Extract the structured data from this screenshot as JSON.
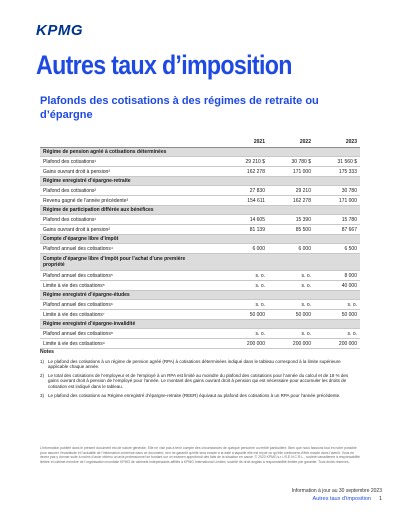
{
  "logo": "KPMG",
  "title": "Autres taux d’imposition",
  "subtitle": "Plafonds des cotisations à des régimes de retraite ou d’épargne",
  "table": {
    "years": [
      "2021",
      "2022",
      "2023"
    ],
    "sections": [
      {
        "heading": "Régime de pension agréé à cotisations déterminées",
        "rows": [
          {
            "label": "Plafond des cotisations¹",
            "values": [
              "29 210 $",
              "30 780 $",
              "31 560 $"
            ]
          },
          {
            "label": "Gains ouvrant droit à pension²",
            "values": [
              "162 278",
              "171 000",
              "175 333"
            ]
          }
        ]
      },
      {
        "heading": "Régime enregistré d’épargne-retraite",
        "rows": [
          {
            "label": "Plafond des cotisations²",
            "values": [
              "27 830",
              "29 210",
              "30 780"
            ]
          },
          {
            "label": "Revenu gagné de l’année précédente³",
            "values": [
              "154 611",
              "162 278",
              "171 000"
            ]
          }
        ]
      },
      {
        "heading": "Régime de participation différée aux bénéfices",
        "rows": [
          {
            "label": "Plafond des cotisations¹",
            "values": [
              "14 605",
              "15 390",
              "15 780"
            ]
          },
          {
            "label": "Gains ouvrant droit à pension²",
            "values": [
              "81 139",
              "85 500",
              "87 667"
            ]
          }
        ]
      },
      {
        "heading": "Compte d’épargne libre d’impôt",
        "rows": [
          {
            "label": "Plafond annuel des cotisations⁴",
            "values": [
              "6 000",
              "6 000",
              "6 500"
            ]
          }
        ]
      },
      {
        "heading": "Compte d’épargne libre d’impôt pour l’achat d’une première propriété",
        "two_line": true,
        "rows": [
          {
            "label": "Plafond annuel des cotisations⁵",
            "values": [
              "s. o.",
              "s. o.",
              "8 000"
            ]
          },
          {
            "label": "Limite à vie des cotisations⁵",
            "values": [
              "s. o.",
              "s. o.",
              "40 000"
            ]
          }
        ]
      },
      {
        "heading": "Régime enregistré d’épargne-études",
        "rows": [
          {
            "label": "Plafond annuel des cotisations⁶",
            "values": [
              "s. o.",
              "s. o.",
              "s. o."
            ]
          },
          {
            "label": "Limite à vie des cotisations⁷",
            "values": [
              "50 000",
              "50 000",
              "50 000"
            ]
          }
        ]
      },
      {
        "heading": "Régime enregistré d’épargne-invalidité",
        "rows": [
          {
            "label": "Plafond annuel des cotisations⁸",
            "values": [
              "s. o.",
              "s. o.",
              "s. o."
            ]
          },
          {
            "label": "Limite à vie des cotisations⁹",
            "values": [
              "200 000",
              "200 000",
              "200 000"
            ]
          }
        ]
      }
    ]
  },
  "notes": {
    "title": "Notes",
    "items": [
      {
        "n": "1)",
        "text": "Le plafond des cotisations à un régime de pension agréé (RPA) à cotisations déterminées indiqué dans le tableau correspond à la limite supérieure applicable chaque année."
      },
      {
        "n": "2)",
        "text": "Le total des cotisations de l’employeur et de l’employé à un RPA est limité au moindre du plafond des cotisations pour l’année du calcul et de 18 % des gains ouvrant droit à pension de l’employé pour l’année. Le montant des gains ouvrant droit à pension qui est nécessaire pour accumuler les droits de cotisation est indiqué dans le tableau."
      },
      {
        "n": "3)",
        "text": "Le plafond des cotisations au Régime enregistré d’épargne-retraite (REER) équivaut au plafond des cotisations à un RPA pour l’année précédente."
      }
    ]
  },
  "disclaimer": "L’information publiée dans le présent document est de nature générale. Elle ne vise pas à tenir compte des circonstances de quelque personne ou entité particulière. Bien que nous fassions tout en notre possible pour assurer l’exactitude et l’actualité de l’information contenue dans ce document, rien ne garantit qu’elle sera exacte à la date à laquelle elle est reçue ou qu’elle continuera d’être exacte dans l’avenir. Vous ne devez pas y donner suite à moins d’avoir obtenu un avis professionnel se fondant sur un examen approfondi des faits de la situation en cause. © 2023 KPMG s.r.l./S.E.N.C.R.L., société canadienne à responsabilité limitée et cabinet membre de l’organisation mondiale KPMG de cabinets indépendants affiliés à KPMG International Limited, société de droit anglais à responsabilité limitée par garantie. Tous droits réservés.",
  "footer": {
    "date": "Information à jour au 30 septembre 2023",
    "doc_title": "Autres taux d’imposition",
    "page": "1"
  }
}
